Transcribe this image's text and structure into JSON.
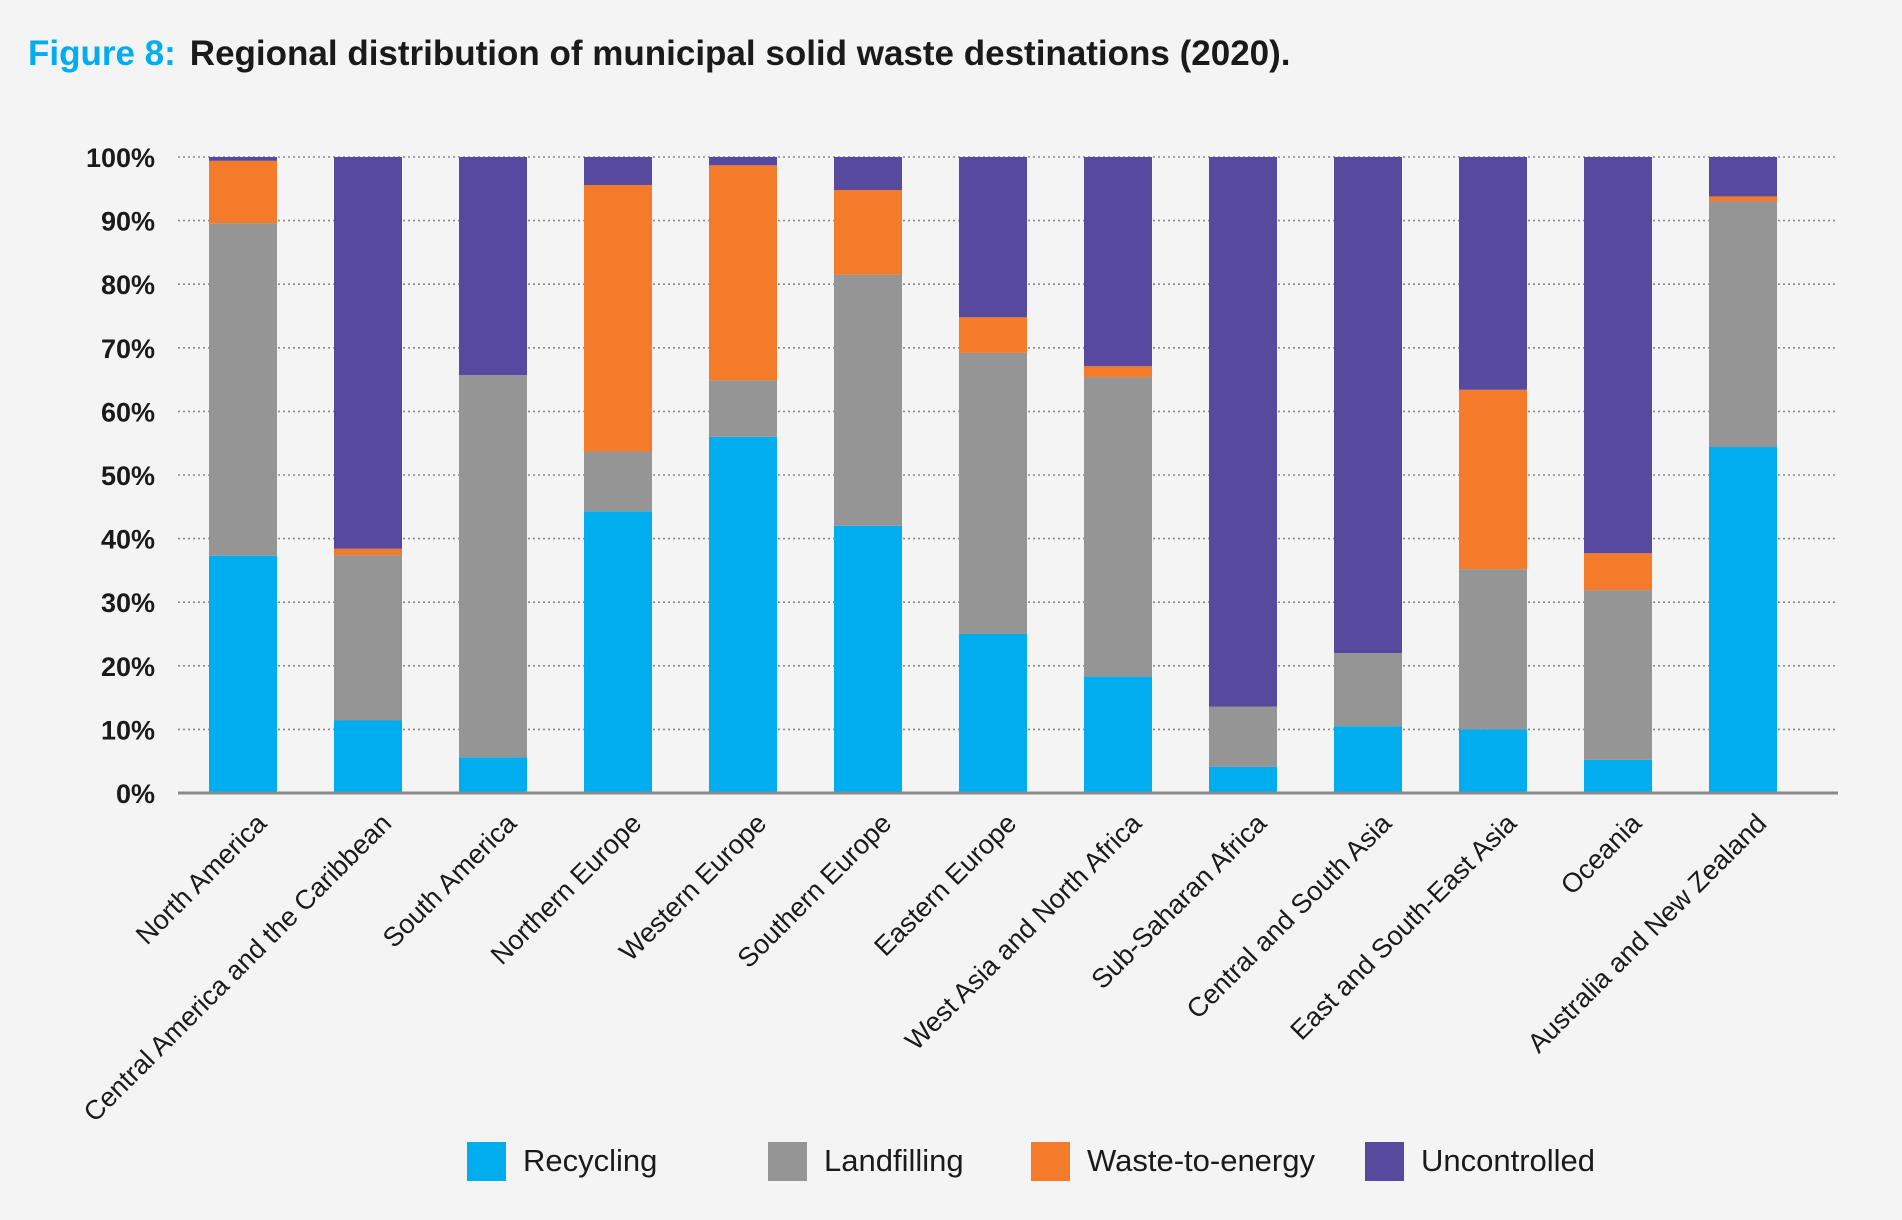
{
  "header": {
    "figure_label": "Figure 8:",
    "title": "Regional distribution of municipal solid waste destinations (2020)."
  },
  "colors": {
    "accent": "#00adef",
    "recycling": "#00aeef",
    "landfilling": "#959595",
    "waste_to_energy": "#f47b2a",
    "uncontrolled": "#574a9e",
    "grid": "#8a8a8a",
    "axis": "#8a8a8a"
  },
  "chart_data": {
    "type": "bar",
    "stacked": true,
    "title": "Regional distribution of municipal solid waste destinations (2020).",
    "xlabel": "",
    "ylabel": "",
    "ylim": [
      0,
      100
    ],
    "yticks": [
      "0%",
      "10%",
      "20%",
      "30%",
      "40%",
      "50%",
      "60%",
      "70%",
      "80%",
      "90%",
      "100%"
    ],
    "grid": true,
    "legend_position": "bottom",
    "categories": [
      "North America",
      "Central America and the Caribbean",
      "South America",
      "Northern Europe",
      "Western Europe",
      "Southern Europe",
      "Eastern Europe",
      "West Asia and North Africa",
      "Sub-Saharan Africa",
      "Central and South Asia",
      "East and South-East Asia",
      "Oceania",
      "Australia and New Zealand"
    ],
    "series": [
      {
        "name": "Recycling",
        "color": "#00aeef",
        "values": [
          37.3,
          11.4,
          5.6,
          44.3,
          56.0,
          42.0,
          25.0,
          18.3,
          4.1,
          10.5,
          10.0,
          5.2,
          54.4
        ]
      },
      {
        "name": "Landfilling",
        "color": "#959595",
        "values": [
          52.3,
          26.0,
          60.1,
          9.4,
          8.9,
          39.5,
          44.2,
          47.1,
          9.5,
          11.5,
          25.2,
          26.7,
          38.6
        ]
      },
      {
        "name": "Waste-to-energy",
        "color": "#f47b2a",
        "values": [
          9.8,
          1.0,
          0,
          41.9,
          33.8,
          13.3,
          5.6,
          1.7,
          0,
          0,
          28.2,
          5.8,
          0.8
        ]
      },
      {
        "name": "Uncontrolled",
        "color": "#574a9e",
        "values": [
          0.6,
          61.6,
          34.3,
          4.4,
          1.3,
          5.2,
          25.2,
          32.9,
          86.4,
          78.0,
          36.6,
          62.3,
          6.2
        ]
      }
    ]
  }
}
